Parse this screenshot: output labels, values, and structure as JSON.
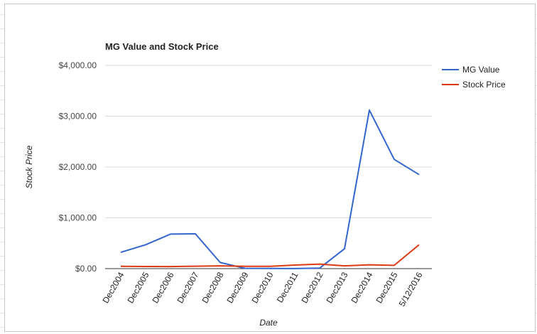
{
  "chart_data": {
    "type": "line",
    "title": "MG Value and Stock Price",
    "xlabel": "Date",
    "ylabel": "Stock Price",
    "categories": [
      "Dec2004",
      "Dec2005",
      "Dec2006",
      "Dec2007",
      "Dec2008",
      "Dec2009",
      "Dec2010",
      "Dec2011",
      "Dec2012",
      "Dec2013",
      "Dec2014",
      "Dec2015",
      "5/12/2016"
    ],
    "y_ticks": [
      "$0.00",
      "$1,000.00",
      "$2,000.00",
      "$3,000.00",
      "$4,000.00"
    ],
    "ylim": [
      0,
      4000
    ],
    "grid": true,
    "legend_position": "top-right",
    "series": [
      {
        "name": "MG Value",
        "color": "#3366cc",
        "values": [
          320,
          470,
          680,
          685,
          120,
          5,
          3,
          2,
          10,
          390,
          3120,
          2150,
          1850
        ]
      },
      {
        "name": "Stock Price",
        "color": "#dc3912",
        "values": [
          45,
          42,
          40,
          48,
          55,
          45,
          45,
          70,
          90,
          55,
          75,
          65,
          470
        ]
      }
    ]
  }
}
